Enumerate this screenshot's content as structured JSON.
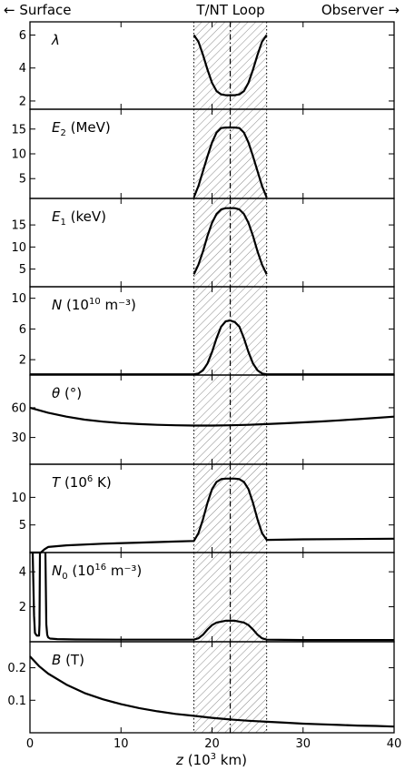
{
  "header": {
    "left": "← Surface",
    "center": "T/NT Loop",
    "right": "Observer →"
  },
  "chart_data": {
    "type": "line",
    "shared_x": {
      "xlabel_parts": {
        "var": "z",
        "rest": " (10",
        "exp": "3",
        "tail": " km)"
      },
      "xlim": [
        0,
        40
      ],
      "xticks": [
        0,
        10,
        20,
        30,
        40
      ],
      "x_tick_labels": [
        "0",
        "10",
        "20",
        "30",
        "40"
      ]
    },
    "loop_region": {
      "x_range": [
        18,
        26
      ],
      "center": 22
    },
    "panels": [
      {
        "id": "lambda",
        "label_parts": {
          "var": "λ",
          "rest": "",
          "sub": "",
          "exp": "",
          "tail": ""
        },
        "ylim": [
          1.5,
          6.8
        ],
        "yticks": [
          2,
          4,
          6
        ],
        "y_tick_labels": [
          "2",
          "4",
          "6"
        ],
        "series": [
          {
            "x": [
              18,
              18.5,
              19,
              19.5,
              20,
              20.5,
              21,
              21.5,
              22,
              22.5,
              23,
              23.5,
              24,
              24.5,
              25,
              25.5,
              26
            ],
            "y": [
              6.0,
              5.6,
              4.8,
              3.9,
              3.1,
              2.6,
              2.4,
              2.35,
              2.35,
              2.35,
              2.4,
              2.6,
              3.1,
              3.9,
              4.8,
              5.6,
              6.0
            ]
          }
        ]
      },
      {
        "id": "E2",
        "label_parts": {
          "var": "E",
          "rest": "",
          "sub": "2",
          "exp": "",
          "tail": " (MeV)"
        },
        "ylim": [
          1,
          19
        ],
        "yticks": [
          5,
          10,
          15
        ],
        "y_tick_labels": [
          "5",
          "10",
          "15"
        ],
        "series": [
          {
            "x": [
              18,
              18.5,
              19,
              19.5,
              20,
              20.5,
              21,
              21.5,
              22,
              22.5,
              23,
              23.5,
              24,
              24.5,
              25,
              25.5,
              26
            ],
            "y": [
              1.2,
              3.5,
              6.5,
              9.5,
              12.3,
              14.3,
              15.2,
              15.3,
              15.3,
              15.3,
              15.2,
              14.3,
              12.3,
              9.5,
              6.5,
              3.5,
              1.2
            ]
          }
        ]
      },
      {
        "id": "E1",
        "label_parts": {
          "var": "E",
          "rest": "",
          "sub": "1",
          "exp": "",
          "tail": " (keV)"
        },
        "ylim": [
          1,
          21
        ],
        "yticks": [
          5,
          10,
          15
        ],
        "y_tick_labels": [
          "5",
          "10",
          "15"
        ],
        "series": [
          {
            "x": [
              18,
              18.5,
              19,
              19.5,
              20,
              20.5,
              21,
              21.5,
              22,
              22.5,
              23,
              23.5,
              24,
              24.5,
              25,
              25.5,
              26
            ],
            "y": [
              3.8,
              6.0,
              9.0,
              12.5,
              15.5,
              17.5,
              18.5,
              18.8,
              18.8,
              18.8,
              18.5,
              17.5,
              15.5,
              12.5,
              9.0,
              6.0,
              3.8
            ]
          }
        ]
      },
      {
        "id": "N",
        "label_parts": {
          "var": "N",
          "rest": " (10",
          "sub": "",
          "exp": "10",
          "tail": " m⁻³)"
        },
        "ylim": [
          0,
          11.5
        ],
        "yticks": [
          2,
          6,
          10
        ],
        "y_tick_labels": [
          "2",
          "6",
          "10"
        ],
        "series": [
          {
            "x": [
              0,
              18,
              18.5,
              19,
              19.5,
              20,
              20.5,
              21,
              21.5,
              22,
              22.5,
              23,
              23.5,
              24,
              24.5,
              25,
              25.5,
              26,
              40
            ],
            "y": [
              0.1,
              0.1,
              0.2,
              0.6,
              1.5,
              3.0,
              4.8,
              6.3,
              7.0,
              7.1,
              6.9,
              6.3,
              4.8,
              3.0,
              1.5,
              0.6,
              0.2,
              0.1,
              0.1
            ]
          }
        ]
      },
      {
        "id": "theta",
        "label_parts": {
          "var": "θ",
          "rest": " (°)",
          "sub": "",
          "exp": "",
          "tail": ""
        },
        "ylim": [
          3,
          93
        ],
        "yticks": [
          30,
          60
        ],
        "y_tick_labels": [
          "30",
          "60"
        ],
        "series": [
          {
            "x": [
              0,
              2,
              4,
              6,
              8,
              10,
              12,
              14,
              16,
              18,
              20,
              22,
              24,
              26,
              28,
              30,
              32,
              34,
              36,
              38,
              40
            ],
            "y": [
              60.0,
              55.0,
              51.0,
              48.0,
              46.0,
              44.5,
              43.5,
              42.8,
              42.3,
              42.0,
              42.0,
              42.3,
              42.8,
              43.5,
              44.3,
              45.2,
              46.2,
              47.3,
              48.5,
              49.7,
              51.0
            ]
          }
        ]
      },
      {
        "id": "T",
        "label_parts": {
          "var": "T",
          "rest": " (10",
          "sub": "",
          "exp": "6",
          "tail": " K)"
        },
        "ylim": [
          0,
          16
        ],
        "yticks": [
          5,
          10
        ],
        "y_tick_labels": [
          "5",
          "10"
        ],
        "series": [
          {
            "x": [
              0,
              1.2,
              1.6,
              2.0,
              4,
              8,
              12,
              16,
              18,
              18.5,
              19,
              19.5,
              20,
              20.5,
              21,
              21.5,
              22,
              22.5,
              23,
              23.5,
              24,
              24.5,
              25,
              25.5,
              26,
              30,
              40
            ],
            "y": [
              0.0,
              0.0,
              0.6,
              1.0,
              1.3,
              1.6,
              1.8,
              2.0,
              2.1,
              3.5,
              6.0,
              9.0,
              11.5,
              12.8,
              13.3,
              13.4,
              13.4,
              13.4,
              13.3,
              12.8,
              11.5,
              9.0,
              6.0,
              3.5,
              2.3,
              2.4,
              2.5
            ]
          }
        ]
      },
      {
        "id": "N0",
        "label_parts": {
          "var": "N",
          "rest": " (10",
          "sub": "0",
          "exp": "16",
          "tail": " m⁻³)"
        },
        "ylim": [
          0,
          5.1
        ],
        "yticks": [
          2,
          4
        ],
        "y_tick_labels": [
          "2",
          "4"
        ],
        "series": [
          {
            "x": [
              0.3,
              0.45,
              0.55,
              0.75,
              1.0,
              1.05,
              1.1
            ],
            "y": [
              5.1,
              1.5,
              0.5,
              0.35,
              0.35,
              1.0,
              5.1
            ]
          },
          {
            "x": [
              1.7,
              1.8,
              1.9,
              2.0,
              2.2,
              3,
              5,
              10,
              15,
              18,
              18.5,
              19,
              19.5,
              20,
              20.5,
              21,
              21.5,
              22,
              22.5,
              23,
              23.5,
              24,
              24.5,
              25,
              25.5,
              26,
              30,
              40
            ],
            "y": [
              5.1,
              1.0,
              0.4,
              0.25,
              0.18,
              0.15,
              0.13,
              0.12,
              0.12,
              0.12,
              0.2,
              0.4,
              0.7,
              0.95,
              1.1,
              1.15,
              1.2,
              1.2,
              1.2,
              1.15,
              1.1,
              0.95,
              0.7,
              0.4,
              0.2,
              0.12,
              0.1,
              0.1
            ]
          }
        ]
      },
      {
        "id": "B",
        "label_parts": {
          "var": "B",
          "rest": " (T)",
          "sub": "",
          "exp": "",
          "tail": ""
        },
        "ylim": [
          0,
          0.28
        ],
        "yticks": [
          0.1,
          0.2
        ],
        "y_tick_labels": [
          "0.1",
          "0.2"
        ],
        "series": [
          {
            "x": [
              0,
              1,
              2,
              4,
              6,
              8,
              10,
              12,
              14,
              16,
              18,
              20,
              22,
              24,
              26,
              28,
              30,
              32,
              34,
              36,
              38,
              40
            ],
            "y": [
              0.235,
              0.205,
              0.182,
              0.148,
              0.122,
              0.103,
              0.088,
              0.076,
              0.066,
              0.058,
              0.052,
              0.046,
              0.041,
              0.037,
              0.034,
              0.031,
              0.028,
              0.026,
              0.024,
              0.022,
              0.021,
              0.019
            ]
          }
        ]
      }
    ]
  }
}
